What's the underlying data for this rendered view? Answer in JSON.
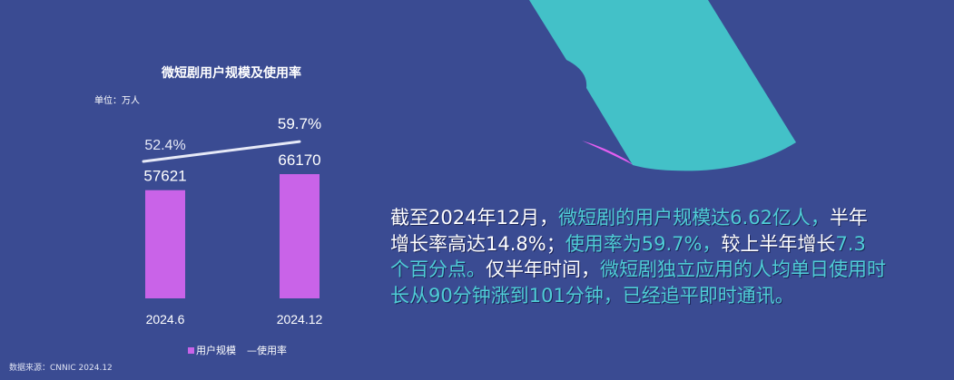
{
  "colors": {
    "background": "#3a4b92",
    "bar": "#c963e8",
    "line": "#e6e9f7",
    "accent_teal": "#43c1c8",
    "accent_pink": "#e35ef0",
    "text_highlight": "#4fcdd6"
  },
  "chart_data": {
    "type": "bar+line",
    "title": "微短剧用户规模及使用率",
    "unit_label": "单位：万人",
    "categories": [
      "2024.6",
      "2024.12"
    ],
    "series": [
      {
        "name": "用户规模",
        "type": "bar",
        "values": [
          57621,
          66170
        ],
        "labels": [
          "57621",
          "66170"
        ]
      },
      {
        "name": "使用率",
        "type": "line",
        "values": [
          52.4,
          59.7
        ],
        "labels": [
          "52.4%",
          "59.7%"
        ]
      }
    ],
    "legend": {
      "position": "bottom",
      "items": [
        "用户规模",
        "使用率"
      ]
    },
    "grid": false
  },
  "source": "数据来源：CNNIC 2024.12",
  "paragraph": [
    [
      {
        "c": "w",
        "text": "截至2024年12月，"
      },
      {
        "c": "t",
        "text": "微短剧的用户规模达6.62亿人，"
      },
      {
        "c": "w",
        "text": "半年"
      }
    ],
    [
      {
        "c": "w",
        "text": "增长率高达14.8%；"
      },
      {
        "c": "t",
        "text": "使用率为59.7%，"
      },
      {
        "c": "w",
        "text": "较上半年增长"
      },
      {
        "c": "t",
        "text": "7.3"
      }
    ],
    [
      {
        "c": "t",
        "text": "个百分点。"
      },
      {
        "c": "w",
        "text": "仅半年时间，"
      },
      {
        "c": "t",
        "text": "微短剧独立应用的人均单日使用时"
      }
    ],
    [
      {
        "c": "t",
        "text": "长从90分钟涨到101分钟，已经追平即时通讯。"
      }
    ]
  ]
}
